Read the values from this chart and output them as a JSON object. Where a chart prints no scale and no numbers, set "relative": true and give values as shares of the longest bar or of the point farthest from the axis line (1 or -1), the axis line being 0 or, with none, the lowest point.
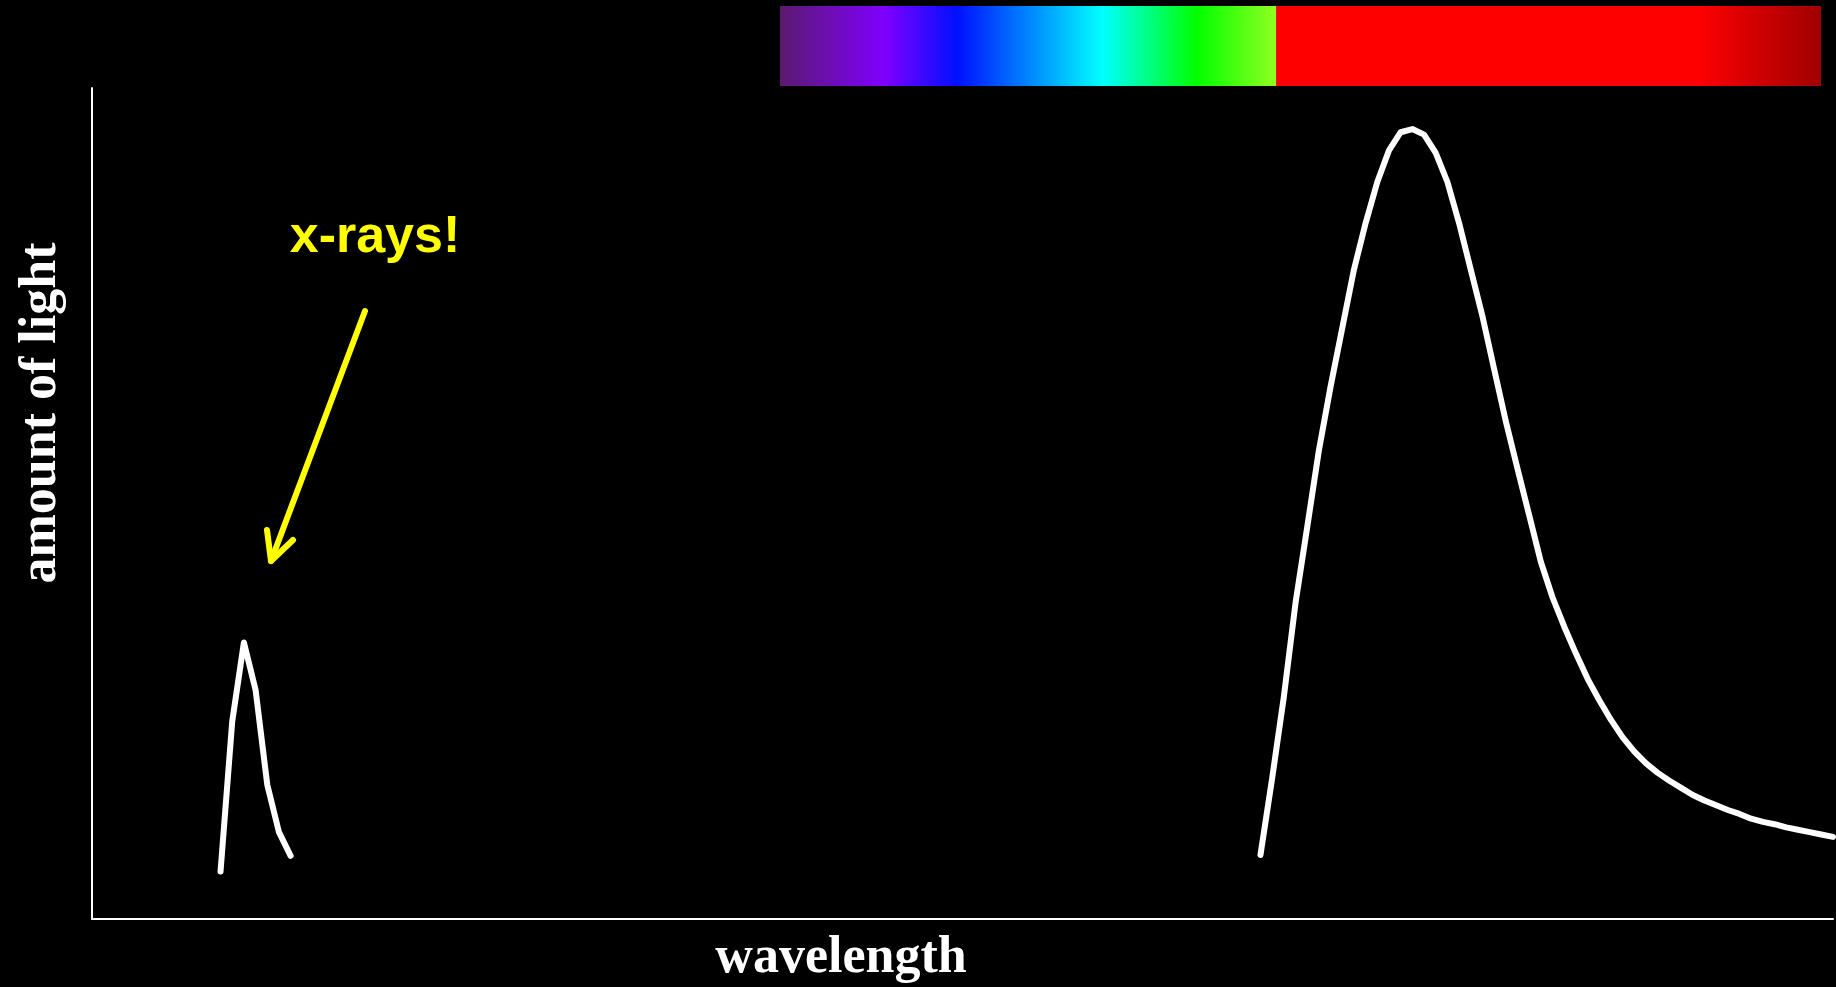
{
  "chart_data": {
    "type": "line",
    "relative": true,
    "xlabel": "wavelength",
    "ylabel": "amount of light",
    "annotations": [
      "x-rays!"
    ],
    "grid": false,
    "marker": "none",
    "line_style": "solid",
    "categories": [
      null,
      null,
      null,
      null,
      null,
      null,
      null,
      null,
      null,
      null,
      null,
      null,
      null,
      null,
      null,
      null,
      null,
      null,
      null,
      null,
      null,
      null,
      null,
      null,
      null,
      null,
      null,
      null,
      null,
      null,
      null,
      null,
      null,
      null,
      null,
      null,
      null,
      null,
      null,
      null,
      null,
      null,
      null,
      null,
      null,
      null,
      null,
      null,
      null,
      null,
      null,
      null,
      null,
      null,
      null,
      null,
      null,
      null,
      null,
      null,
      null,
      null,
      null,
      null,
      null,
      null,
      null,
      null,
      null,
      null,
      null,
      null,
      null,
      null,
      null,
      null,
      null,
      null,
      null,
      null,
      null,
      null,
      null,
      null,
      null,
      null,
      null,
      null,
      null,
      null,
      null,
      null,
      null,
      null,
      null,
      null,
      null,
      null,
      null,
      null,
      null,
      null,
      null,
      null,
      null,
      null,
      null,
      null,
      null,
      null,
      null,
      null,
      null,
      null,
      null,
      null,
      null,
      null,
      null,
      null,
      null,
      null,
      null,
      null,
      null,
      null,
      null,
      null,
      null,
      null,
      null,
      null,
      null,
      null,
      null,
      null,
      null,
      null,
      null,
      null,
      null,
      null,
      null,
      null,
      null,
      null,
      null,
      null,
      null,
      null
    ],
    "series": [
      {
        "color": "#ffffff",
        "values": [
          null,
          null,
          null,
          null,
          null,
          null,
          null,
          null,
          null,
          null,
          null,
          0.06,
          0.25,
          0.35,
          0.29,
          0.17,
          0.11,
          0.08,
          null,
          null,
          null,
          null,
          null,
          null,
          null,
          null,
          null,
          null,
          null,
          null,
          null,
          null,
          null,
          null,
          null,
          null,
          null,
          null,
          null,
          null,
          null,
          null,
          null,
          null,
          null,
          null,
          null,
          null,
          null,
          null,
          null,
          null,
          null,
          null,
          null,
          null,
          null,
          null,
          null,
          null,
          null,
          null,
          null,
          null,
          null,
          null,
          null,
          null,
          null,
          null,
          null,
          null,
          null,
          null,
          null,
          null,
          null,
          null,
          null,
          null,
          null,
          null,
          null,
          null,
          null,
          null,
          null,
          null,
          null,
          null,
          null,
          null,
          null,
          null,
          null,
          null,
          null,
          null,
          null,
          null,
          null,
          null,
          null,
          null,
          null,
          null,
          null,
          null,
          null,
          null,
          null,
          null,
          null,
          null,
          null,
          null,
          null,
          null,
          null,
          null,
          null,
          null,
          null,
          null,
          null,
          null,
          null,
          null,
          null,
          null,
          null,
          null,
          null,
          null,
          null,
          null,
          null,
          null,
          null,
          null,
          null,
          null,
          null,
          null,
          null,
          null,
          null,
          null,
          null,
          null
        ]
      },
      {
        "color": "#ffffff",
        "values": [
          null,
          null,
          null,
          null,
          null,
          null,
          null,
          null,
          null,
          null,
          null,
          null,
          null,
          null,
          null,
          null,
          null,
          null,
          null,
          null,
          null,
          null,
          null,
          null,
          null,
          null,
          null,
          null,
          null,
          null,
          null,
          null,
          null,
          null,
          null,
          null,
          null,
          null,
          null,
          null,
          null,
          null,
          null,
          null,
          null,
          null,
          null,
          null,
          null,
          null,
          null,
          null,
          null,
          null,
          null,
          null,
          null,
          null,
          null,
          null,
          null,
          null,
          null,
          null,
          null,
          null,
          null,
          null,
          null,
          null,
          null,
          null,
          null,
          null,
          null,
          null,
          null,
          null,
          null,
          null,
          null,
          null,
          null,
          null,
          null,
          null,
          null,
          null,
          null,
          null,
          null,
          null,
          null,
          null,
          null,
          null,
          null,
          null,
          null,
          null,
          0.081,
          0.178,
          0.281,
          0.4,
          0.496,
          0.593,
          0.674,
          0.748,
          0.822,
          0.881,
          0.933,
          0.973,
          0.996,
          1,
          0.993,
          0.97,
          0.933,
          0.881,
          0.822,
          0.763,
          0.696,
          0.63,
          0.57,
          0.511,
          0.452,
          0.407,
          0.37,
          0.336,
          0.304,
          0.277,
          0.252,
          0.23,
          0.212,
          0.197,
          0.185,
          0.175,
          0.166,
          0.157,
          0.15,
          0.144,
          0.138,
          0.133,
          0.127,
          0.123,
          0.12,
          0.116,
          0.113,
          0.11,
          0.107,
          0.104
        ]
      }
    ]
  }
}
